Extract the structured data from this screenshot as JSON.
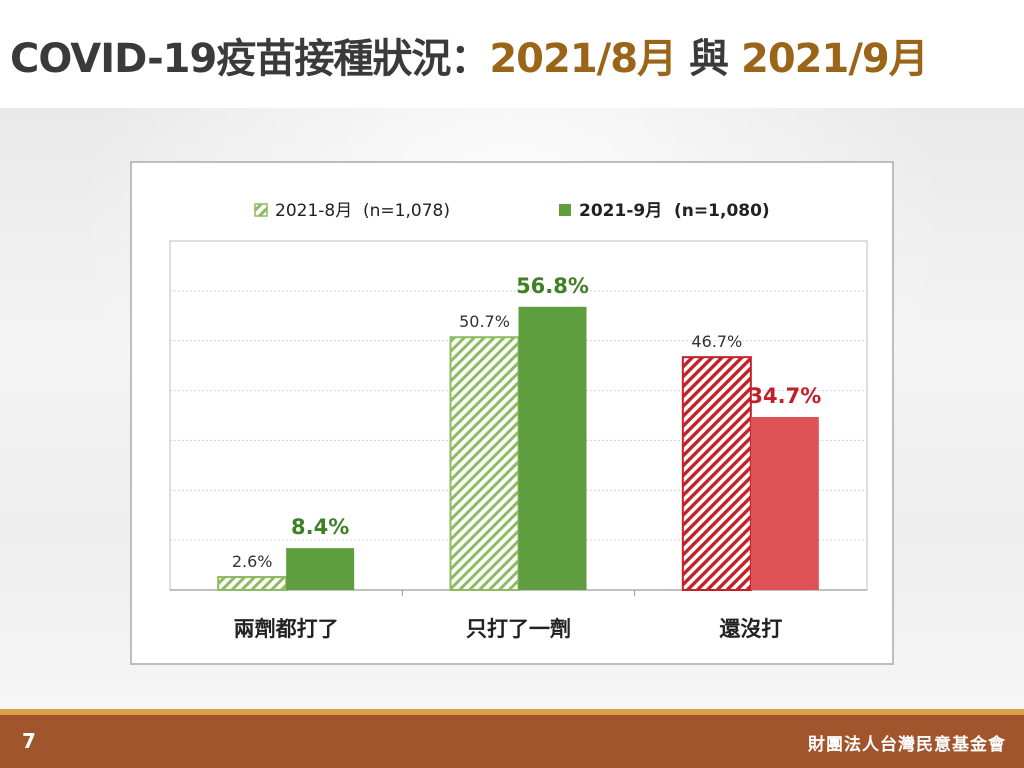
{
  "header": {
    "title_main": "COVID-19疫苗接種狀況：",
    "title_date1": "2021/8月",
    "title_join": " 與 ",
    "title_date2": "2021/9月"
  },
  "footer": {
    "page_number": "7",
    "organization": "財團法人台灣民意基金會"
  },
  "chart_data": {
    "type": "bar",
    "categories": [
      "兩劑都打了",
      "只打了一劑",
      "還沒打"
    ],
    "series": [
      {
        "name": "2021-8月  (n=1,078)",
        "values": [
          2.6,
          50.7,
          46.7
        ],
        "labels": [
          "2.6%",
          "50.7%",
          "46.7%"
        ],
        "style": "hatched"
      },
      {
        "name": "2021-9月  (n=1,080)",
        "values": [
          8.4,
          56.8,
          34.7
        ],
        "labels": [
          "8.4%",
          "56.8%",
          "34.7%"
        ],
        "style": "solid"
      }
    ],
    "ylim": [
      0,
      70
    ],
    "grid": true,
    "legend_position": "top",
    "colors": {
      "green": "#5f9e3f",
      "green_hatch_line": "#8dbb62",
      "red": "#de5155",
      "red_hatch_line": "#c22128",
      "label_green": "#3f7f25",
      "label_red": "#c0202a",
      "label_dark": "#333333"
    }
  }
}
